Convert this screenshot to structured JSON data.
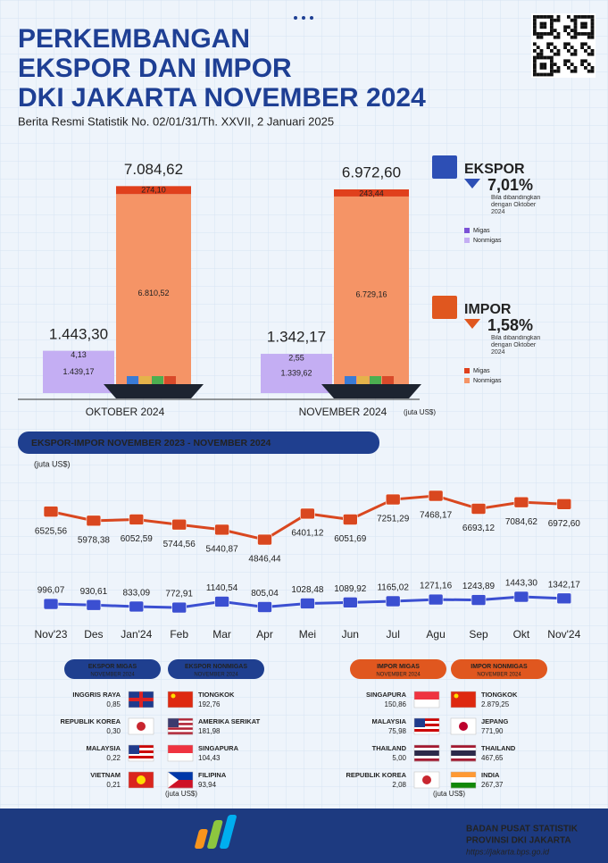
{
  "header": {
    "title_lines": [
      "PERKEMBANGAN",
      "EKSPOR DAN IMPOR",
      "DKI JAKARTA NOVEMBER 2024"
    ],
    "subtitle": "Berita Resmi Statistik No. 02/01/31/Th. XXVII, 2 Januari 2025"
  },
  "chart_data": [
    {
      "type": "stacked-bar",
      "categories": [
        "OKTOBER 2024",
        "NOVEMBER 2024"
      ],
      "unit": "(juta US$)",
      "groups": [
        {
          "name": "EKSPOR",
          "color": "#2d4fb5",
          "change": {
            "value": 7.01,
            "label": "7,01%"
          },
          "note": "Bila dibandingkan dengan Oktober 2024",
          "totals": [
            1443.3,
            1342.17
          ],
          "total_labels": [
            "1.443,30",
            "1.342,17"
          ],
          "series": [
            {
              "name": "Migas",
              "color": "#7b52d6",
              "values": [
                4.13,
                2.55
              ],
              "value_labels": [
                "4,13",
                "2,55"
              ]
            },
            {
              "name": "Nonmigas",
              "color": "#c4aef3",
              "values": [
                1439.17,
                1339.62
              ],
              "value_labels": [
                "1.439,17",
                "1.339,62"
              ]
            }
          ]
        },
        {
          "name": "IMPOR",
          "color": "#e0571f",
          "change": {
            "value": 1.58,
            "label": "1,58%"
          },
          "note": "Bila dibandingkan dengan Oktober 2024",
          "totals": [
            7084.62,
            6972.6
          ],
          "total_labels": [
            "7.084,62",
            "6.972,60"
          ],
          "series": [
            {
              "name": "Migas",
              "color": "#e0401c",
              "values": [
                274.1,
                243.44
              ],
              "value_labels": [
                "274,10",
                "243,44"
              ]
            },
            {
              "name": "Nonmigas",
              "color": "#f59466",
              "values": [
                6810.52,
                6729.16
              ],
              "value_labels": [
                "6.810,52",
                "6.729,16"
              ]
            }
          ]
        }
      ]
    },
    {
      "type": "line",
      "title": "EKSPOR-IMPOR NOVEMBER 2023 - NOVEMBER 2024",
      "unit": "(juta US$)",
      "categories": [
        "Nov'23",
        "Des",
        "Jan'24",
        "Feb",
        "Mar",
        "Apr",
        "Mei",
        "Jun",
        "Jul",
        "Agu",
        "Sep",
        "Okt",
        "Nov'24"
      ],
      "series": [
        {
          "color": "#d9471f",
          "label_color": "#d9561f",
          "values": [
            6525.56,
            5978.38,
            6052.59,
            5744.56,
            5440.87,
            4846.44,
            6401.12,
            6051.69,
            7251.29,
            7468.17,
            6693.12,
            7084.62,
            6972.6
          ],
          "value_labels": [
            "6525,56",
            "5978,38",
            "6052,59",
            "5744,56",
            "5440,87",
            "4846,44",
            "6401,12",
            "6051,69",
            "7251,29",
            "7468,17",
            "6693,12",
            "7084,62",
            "6972,60"
          ]
        },
        {
          "color": "#3b4fd1",
          "label_color": "#1f3a8c",
          "values": [
            996.07,
            930.61,
            833.09,
            772.91,
            1140.54,
            805.04,
            1028.48,
            1089.92,
            1165.02,
            1271.16,
            1243.89,
            1443.3,
            1342.17
          ],
          "value_labels": [
            "996,07",
            "930,61",
            "833,09",
            "772,91",
            "1140,54",
            "805,04",
            "1028,48",
            "1089,92",
            "1165,02",
            "1271,16",
            "1243,89",
            "1443,30",
            "1342,17"
          ]
        }
      ]
    }
  ],
  "table_groups": [
    {
      "unit": "(juta US$)",
      "tables": [
        {
          "title": "EKSPOR MIGAS",
          "subtitle": "NOVEMBER 2024",
          "rows": [
            {
              "country": "INGGRIS RAYA",
              "value": "0,85"
            },
            {
              "country": "REPUBLIK KOREA",
              "value": "0,30"
            },
            {
              "country": "MALAYSIA",
              "value": "0,22"
            },
            {
              "country": "VIETNAM",
              "value": "0,21"
            }
          ]
        },
        {
          "title": "EKSPOR NONMIGAS",
          "subtitle": "NOVEMBER 2024",
          "rows": [
            {
              "country": "TIONGKOK",
              "value": "192,76"
            },
            {
              "country": "AMERIKA SERIKAT",
              "value": "181,98"
            },
            {
              "country": "SINGAPURA",
              "value": "104,43"
            },
            {
              "country": "FILIPINA",
              "value": "93,94"
            }
          ]
        }
      ]
    },
    {
      "unit": "(juta US$)",
      "tables": [
        {
          "title": "IMPOR MIGAS",
          "subtitle": "NOVEMBER 2024",
          "rows": [
            {
              "country": "SINGAPURA",
              "value": "150,86"
            },
            {
              "country": "MALAYSIA",
              "value": "75,98"
            },
            {
              "country": "THAILAND",
              "value": "5,00"
            },
            {
              "country": "REPUBLIK KOREA",
              "value": "2,08"
            }
          ]
        },
        {
          "title": "IMPOR NONMIGAS",
          "subtitle": "NOVEMBER 2024",
          "rows": [
            {
              "country": "TIONGKOK",
              "value": "2.879,25"
            },
            {
              "country": "JEPANG",
              "value": "771,90"
            },
            {
              "country": "THAILAND",
              "value": "467,65"
            },
            {
              "country": "INDIA",
              "value": "267,37"
            }
          ]
        }
      ]
    }
  ],
  "footer": {
    "org": "BADAN PUSAT STATISTIK",
    "region": "PROVINSI DKI JAKARTA",
    "url": "https://jakarta.bps.go.id"
  }
}
